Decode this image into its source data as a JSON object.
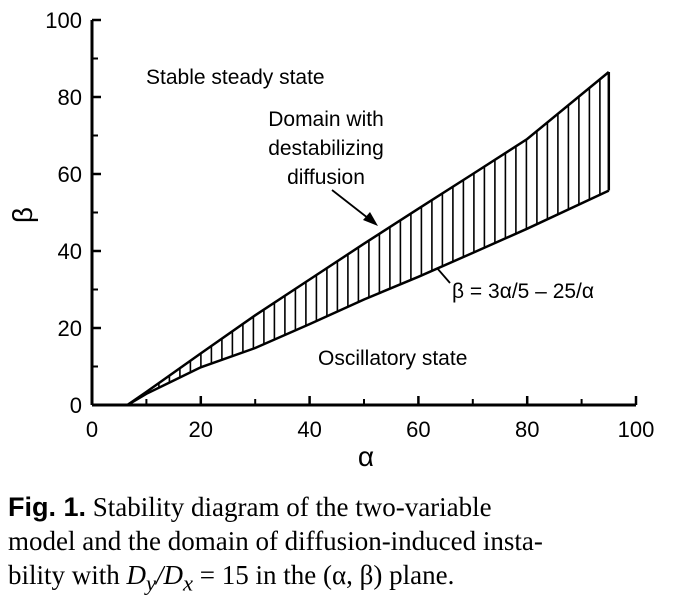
{
  "chart_data": {
    "type": "area",
    "xlabel": "α",
    "ylabel": "β",
    "xlim": [
      0,
      100
    ],
    "ylim": [
      0,
      100
    ],
    "x_ticks": [
      0,
      20,
      40,
      60,
      80,
      100
    ],
    "y_ticks": [
      0,
      20,
      40,
      60,
      80,
      100
    ],
    "grid": false,
    "series": [
      {
        "values": [
          [
            6.5,
            0
          ],
          [
            10,
            2.9
          ],
          [
            20,
            9.8
          ],
          [
            30,
            14.8
          ],
          [
            40,
            21.0
          ],
          [
            50,
            27.4
          ],
          [
            60,
            33.3
          ],
          [
            70,
            39.5
          ],
          [
            80,
            45.8
          ],
          [
            95,
            55.7
          ]
        ]
      },
      {
        "values": [
          [
            6.5,
            0
          ],
          [
            10,
            3.4
          ],
          [
            20,
            13.4
          ],
          [
            30,
            23.3
          ],
          [
            40,
            32.6
          ],
          [
            50,
            41.9
          ],
          [
            60,
            51.0
          ],
          [
            70,
            60.0
          ],
          [
            80,
            69.1
          ],
          [
            95,
            86.5
          ]
        ]
      }
    ],
    "annotations": {
      "stable": "Stable steady state",
      "domain": [
        "Domain with",
        "destabilizing",
        "diffusion"
      ],
      "curve": "β = 3α/5 – 25/α",
      "oscillatory": "Oscillatory state"
    }
  },
  "caption": {
    "fig_label": "Fig. 1.",
    "line1": "Stability diagram of the two-variable",
    "line2": "model and the domain of diffusion-induced insta-",
    "line3_pre": "bility with ",
    "math": "D",
    "math_sub1": "y",
    "math_mid": "/D",
    "math_sub2": "x",
    "line3_post": " = 15 in the (α, β) plane."
  }
}
